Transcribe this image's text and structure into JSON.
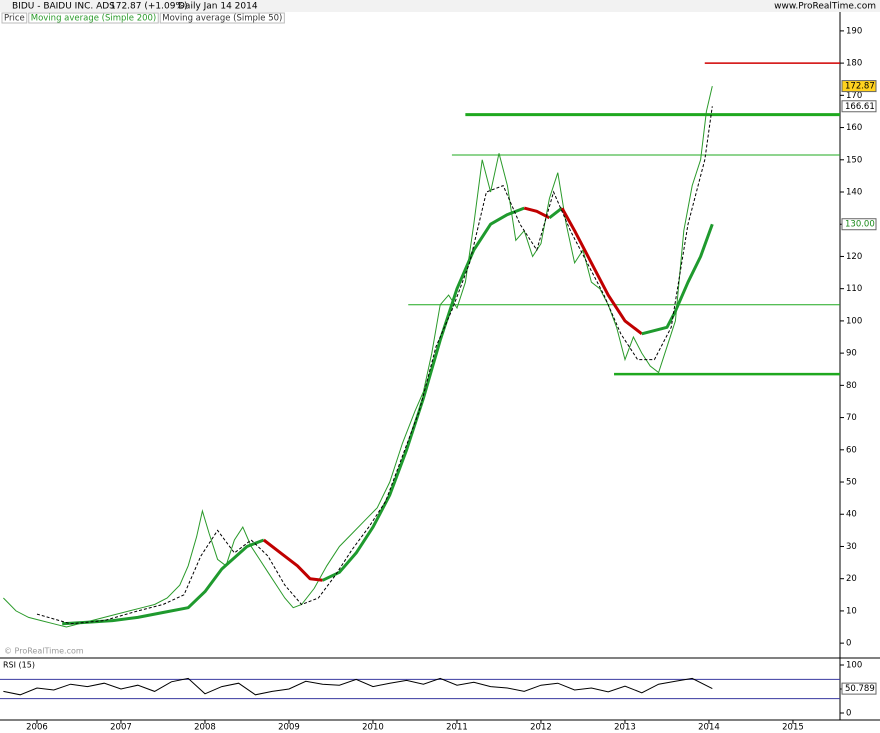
{
  "chart_data": {
    "type": "line",
    "title": "BIDU - BAIDU INC. ADS",
    "quote": "172.87 (+1.09%)",
    "period": "Daily  Jan 14 2014",
    "source": "www.ProRealTime.com",
    "watermark": "© ProRealTime.com",
    "xlim": [
      2005.56,
      2015.56
    ],
    "xticks": [
      2006,
      2007,
      2008,
      2009,
      2010,
      2011,
      2012,
      2013,
      2014,
      2015
    ],
    "ylim": [
      -4.3,
      194
    ],
    "yticks": [
      0,
      10,
      20,
      30,
      40,
      50,
      60,
      70,
      80,
      90,
      100,
      110,
      120,
      130,
      140,
      150,
      160,
      170,
      180,
      190
    ],
    "series": [
      {
        "name": "Price",
        "color": "#2a9a2a",
        "x": [
          2005.6,
          2005.75,
          2005.9,
          2006.05,
          2006.2,
          2006.35,
          2006.5,
          2006.65,
          2006.8,
          2006.95,
          2007.1,
          2007.25,
          2007.4,
          2007.55,
          2007.7,
          2007.8,
          2007.9,
          2007.97,
          2008.05,
          2008.15,
          2008.25,
          2008.35,
          2008.45,
          2008.55,
          2008.65,
          2008.75,
          2008.85,
          2008.95,
          2009.05,
          2009.15,
          2009.3,
          2009.45,
          2009.6,
          2009.75,
          2009.9,
          2010.05,
          2010.2,
          2010.35,
          2010.5,
          2010.6,
          2010.7,
          2010.8,
          2010.9,
          2011.0,
          2011.1,
          2011.2,
          2011.3,
          2011.4,
          2011.5,
          2011.6,
          2011.7,
          2011.8,
          2011.9,
          2012.0,
          2012.1,
          2012.2,
          2012.3,
          2012.4,
          2012.5,
          2012.6,
          2012.7,
          2012.8,
          2012.9,
          2013.0,
          2013.1,
          2013.2,
          2013.3,
          2013.4,
          2013.5,
          2013.6,
          2013.7,
          2013.8,
          2013.9,
          2013.97,
          2014.04
        ],
        "values": [
          14,
          10,
          8,
          7,
          6,
          5,
          6,
          7,
          8,
          9,
          10,
          11,
          12,
          14,
          18,
          24,
          33,
          41,
          34,
          26,
          24,
          32,
          36,
          30,
          26,
          22,
          18,
          14,
          11,
          12,
          17,
          24,
          30,
          34,
          38,
          42,
          50,
          62,
          72,
          78,
          90,
          105,
          108,
          104,
          112,
          130,
          150,
          140,
          152,
          142,
          125,
          128,
          120,
          124,
          138,
          146,
          130,
          118,
          122,
          112,
          110,
          105,
          98,
          88,
          95,
          90,
          86,
          84,
          92,
          100,
          128,
          142,
          150,
          165,
          172.87
        ]
      },
      {
        "name": "Moving average (Simple 200)",
        "color": "#1f9a2e",
        "falling_color": "#c00000",
        "width": 3,
        "x": [
          2006.3,
          2006.6,
          2006.9,
          2007.2,
          2007.5,
          2007.8,
          2008.0,
          2008.2,
          2008.5,
          2008.7,
          2008.9,
          2009.1,
          2009.25,
          2009.4,
          2009.6,
          2009.8,
          2010.0,
          2010.2,
          2010.4,
          2010.6,
          2010.8,
          2011.0,
          2011.2,
          2011.4,
          2011.6,
          2011.8,
          2011.95,
          2012.1,
          2012.25,
          2012.4,
          2012.6,
          2012.8,
          2013.0,
          2013.2,
          2013.35,
          2013.5,
          2013.6,
          2013.75,
          2013.9,
          2014.04
        ],
        "values": [
          6,
          6.5,
          7,
          8,
          9.5,
          11,
          16,
          23,
          30,
          32,
          28,
          24,
          20,
          19.5,
          22,
          28,
          36,
          46,
          60,
          76,
          94,
          110,
          122,
          130,
          133,
          135,
          134,
          132,
          135,
          128,
          118,
          108,
          100,
          96,
          97,
          98,
          103,
          112,
          120,
          130
        ]
      },
      {
        "name": "Moving average (Simple 50)",
        "color": "#000000",
        "dashed": true,
        "width": 1,
        "x": [
          2006.0,
          2006.4,
          2006.8,
          2007.2,
          2007.5,
          2007.75,
          2007.95,
          2008.15,
          2008.35,
          2008.55,
          2008.75,
          2008.95,
          2009.15,
          2009.35,
          2009.55,
          2009.75,
          2009.95,
          2010.15,
          2010.35,
          2010.55,
          2010.75,
          2010.95,
          2011.15,
          2011.35,
          2011.55,
          2011.75,
          2011.95,
          2012.15,
          2012.35,
          2012.55,
          2012.75,
          2012.95,
          2013.15,
          2013.35,
          2013.55,
          2013.75,
          2013.95,
          2014.04
        ],
        "values": [
          9,
          6,
          7,
          10,
          12,
          15,
          27,
          35,
          28,
          32,
          27,
          18,
          12,
          14,
          21,
          29,
          36,
          44,
          58,
          72,
          92,
          104,
          118,
          140,
          142,
          130,
          122,
          140,
          128,
          118,
          108,
          96,
          88,
          88,
          98,
          130,
          150,
          166.61
        ]
      }
    ],
    "levels": [
      {
        "value": 180,
        "x_start": 2013.95,
        "color": "#d00000",
        "width": 1.5
      },
      {
        "value": 164,
        "x_start": 2011.1,
        "color": "#1fa81f",
        "width": 3
      },
      {
        "value": 151.5,
        "x_start": 2010.94,
        "color": "#1fa81f",
        "width": 1
      },
      {
        "value": 105,
        "x_start": 2010.42,
        "color": "#1fa81f",
        "width": 1
      },
      {
        "value": 83.5,
        "x_start": 2012.87,
        "color": "#1fa81f",
        "width": 2.5
      }
    ],
    "price_labels": [
      {
        "value": 172.87,
        "label": "172.87",
        "background": "#ffd21f",
        "color": "#000000"
      },
      {
        "value": 166.61,
        "label": "166.61",
        "background": "#ffffff",
        "color": "#000000"
      },
      {
        "value": 130,
        "label": "130.00",
        "background": "#ffffff",
        "color": "#1a8a1a"
      }
    ],
    "rsi": {
      "title": "RSI (15)",
      "ylim": [
        -14.6,
        112.5
      ],
      "yticks": [
        0,
        50,
        100
      ],
      "levels": [
        70,
        30
      ],
      "level_color": "#3a3aa0",
      "color": "#000000",
      "x": [
        2005.6,
        2005.8,
        2006.0,
        2006.2,
        2006.4,
        2006.6,
        2006.8,
        2007.0,
        2007.2,
        2007.4,
        2007.6,
        2007.8,
        2008.0,
        2008.2,
        2008.4,
        2008.6,
        2008.8,
        2009.0,
        2009.2,
        2009.4,
        2009.6,
        2009.8,
        2010.0,
        2010.2,
        2010.4,
        2010.6,
        2010.8,
        2011.0,
        2011.2,
        2011.4,
        2011.6,
        2011.8,
        2012.0,
        2012.2,
        2012.4,
        2012.6,
        2012.8,
        2013.0,
        2013.2,
        2013.4,
        2013.6,
        2013.8,
        2014.04
      ],
      "values": [
        45,
        38,
        52,
        48,
        60,
        55,
        62,
        50,
        58,
        45,
        65,
        72,
        40,
        55,
        62,
        38,
        45,
        50,
        66,
        60,
        58,
        70,
        55,
        62,
        68,
        60,
        72,
        58,
        64,
        55,
        52,
        45,
        58,
        62,
        48,
        52,
        44,
        56,
        42,
        60,
        66,
        72,
        50.789
      ],
      "last_label": {
        "value": 50.789,
        "label": "50.789"
      }
    }
  }
}
